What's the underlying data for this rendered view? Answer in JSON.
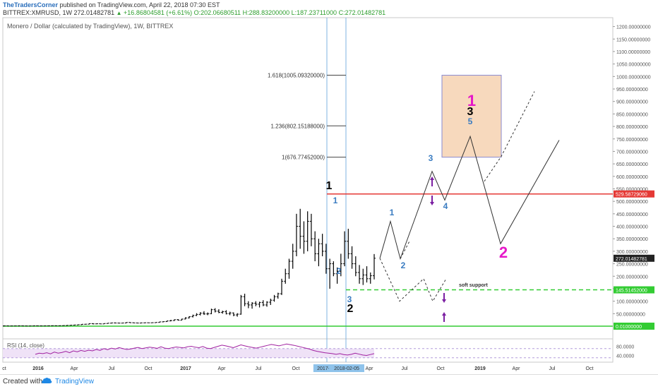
{
  "header": {
    "publisher": "TheTradersCorner",
    "published_text": "published on TradingView.com, April 22, 2018 07:30 EST",
    "symbol": "BITTREX:XMRUSD, 1W",
    "last": "272.01482781",
    "change": "+16.86804581 (+6.61%)",
    "open": "O:202.06680511",
    "high": "H:288.83200000",
    "low": "L:187.23711000",
    "close": "C:272.01482781"
  },
  "footer": {
    "created_with": "Created with",
    "brand": "TradingView"
  },
  "chart_data": {
    "type": "candlestick",
    "title": "Monero / Dollar (calculated by TradingView), 1W, BITTREX",
    "y_axis": {
      "ticks": [
        "1200.00000000",
        "1150.00000000",
        "1100.00000000",
        "1050.00000000",
        "1000.00000000",
        "950.00000000",
        "900.00000000",
        "850.00000000",
        "800.00000000",
        "750.00000000",
        "700.00000000",
        "650.00000000",
        "600.00000000",
        "550.00000000",
        "500.00000000",
        "450.00000000",
        "400.00000000",
        "350.00000000",
        "300.00000000",
        "250.00000000",
        "200.00000000",
        "150.00000000",
        "100.00000000",
        "50.00000000"
      ],
      "ylim": [
        0,
        1230
      ],
      "scale": "linear"
    },
    "x_axis": {
      "tick_labels": [
        "ct",
        "2016",
        "Apr",
        "Jul",
        "Oct",
        "2017",
        "Apr",
        "Jul",
        "Oct",
        "2017-12",
        "2018-02-05",
        "Apr",
        "Jul",
        "Oct",
        "2019",
        "Apr",
        "Jul",
        "Oct"
      ]
    },
    "price_labels": [
      {
        "value": "529.58729060",
        "color": "#e53935"
      },
      {
        "value": "272.01482781",
        "color": "#222222"
      },
      {
        "value": "145.51452000",
        "color": "#33cc33"
      },
      {
        "value": "0.01000000",
        "color": "#33cc33"
      }
    ],
    "fib_levels": [
      {
        "label": "1.618(1005.09320000)",
        "value": 1005.0932
      },
      {
        "label": "1.236(802.15188000)",
        "value": 802.15188
      },
      {
        "label": "1(676.77452000)",
        "value": 676.77452
      }
    ],
    "horizontal_lines": [
      {
        "value": 529.5872906,
        "color": "#e53935",
        "style": "solid"
      },
      {
        "value": 145.51452,
        "color": "#33cc33",
        "style": "dashed"
      },
      {
        "value": 0.01,
        "color": "#33cc33",
        "style": "solid"
      }
    ],
    "annotations": {
      "soft_support": "soft support",
      "waves": [
        {
          "text": "1",
          "color": "#000000",
          "size": "large"
        },
        {
          "text": "1",
          "color": "#3a7cc1",
          "size": "medium"
        },
        {
          "text": "2",
          "color": "#3a7cc1",
          "size": "medium"
        },
        {
          "text": "3",
          "color": "#3a7cc1",
          "size": "medium"
        },
        {
          "text": "2",
          "color": "#000000",
          "size": "large"
        },
        {
          "text": "1",
          "color": "#3a7cc1",
          "size": "medium"
        },
        {
          "text": "2",
          "color": "#3a7cc1",
          "size": "medium"
        },
        {
          "text": "3",
          "color": "#3a7cc1",
          "size": "medium"
        },
        {
          "text": "4",
          "color": "#3a7cc1",
          "size": "medium"
        },
        {
          "text": "1",
          "color": "#e619c8",
          "size": "xlarge"
        },
        {
          "text": "3",
          "color": "#000000",
          "size": "large"
        },
        {
          "text": "5",
          "color": "#3a7cc1",
          "size": "medium"
        },
        {
          "text": "2",
          "color": "#e619c8",
          "size": "xlarge"
        }
      ]
    },
    "weekly_bars": [
      [
        1,
        1,
        1,
        1
      ],
      [
        1,
        1,
        1,
        1
      ],
      [
        1,
        1,
        1,
        1
      ],
      [
        1,
        1,
        1,
        1
      ],
      [
        1,
        1,
        1,
        1
      ],
      [
        1,
        1,
        1,
        1
      ],
      [
        1,
        1,
        1,
        1
      ],
      [
        1,
        1,
        1,
        1
      ],
      [
        1,
        1,
        1,
        1
      ],
      [
        1,
        1,
        1,
        1
      ],
      [
        1,
        1,
        1,
        1
      ],
      [
        1,
        1,
        1,
        1
      ],
      [
        1,
        1,
        1,
        1
      ],
      [
        1,
        1,
        1,
        1
      ],
      [
        1,
        1,
        1,
        1
      ],
      [
        1,
        1,
        1,
        1
      ],
      [
        1,
        1,
        1,
        1
      ],
      [
        1,
        1,
        1,
        1
      ],
      [
        1,
        1,
        1,
        1
      ],
      [
        1,
        1,
        1,
        1
      ],
      [
        1,
        1,
        1,
        1
      ],
      [
        1,
        1,
        1,
        1
      ],
      [
        1,
        1,
        1,
        1
      ],
      [
        1,
        1,
        1,
        1
      ],
      [
        1,
        1,
        1,
        1
      ],
      [
        1,
        1,
        1,
        1
      ],
      [
        1,
        1,
        1,
        1
      ],
      [
        1,
        1,
        1,
        1
      ],
      [
        1,
        1,
        1,
        1
      ],
      [
        1,
        1,
        1,
        1
      ],
      [
        1,
        1,
        1,
        1
      ],
      [
        1,
        1,
        1,
        1
      ],
      [
        1,
        1,
        1,
        1
      ],
      [
        1,
        1,
        1,
        1
      ],
      [
        1,
        1,
        1,
        1
      ],
      [
        1,
        1,
        1,
        1
      ],
      [
        1,
        1,
        1,
        1
      ],
      [
        1,
        1,
        1,
        1
      ],
      [
        1,
        1,
        1,
        1
      ],
      [
        1,
        1,
        1,
        1
      ],
      [
        1,
        1,
        1,
        1
      ],
      [
        1,
        1,
        1,
        1
      ],
      [
        1,
        1,
        1,
        1
      ],
      [
        1,
        1,
        1,
        1
      ],
      [
        1,
        1,
        1,
        1
      ],
      [
        1,
        1,
        1,
        1
      ],
      [
        1,
        1,
        1,
        1
      ],
      [
        1,
        1,
        1,
        1
      ],
      [
        1,
        1,
        1,
        1
      ],
      [
        1,
        1,
        1,
        1
      ],
      [
        1,
        1,
        1,
        1
      ],
      [
        1,
        1,
        1,
        1
      ],
      [
        1,
        1,
        1,
        1
      ],
      [
        1,
        1,
        1,
        1
      ],
      [
        1,
        1,
        1,
        1
      ],
      [
        1,
        1,
        1,
        1
      ],
      [
        1,
        1,
        1,
        1
      ],
      [
        1,
        1,
        1,
        1
      ],
      [
        1,
        1,
        1,
        1
      ],
      [
        1,
        1,
        1,
        1
      ],
      [
        1,
        1,
        1,
        1
      ],
      [
        1,
        1,
        1,
        1
      ],
      [
        1,
        1,
        1,
        1
      ],
      [
        1,
        1,
        1,
        1
      ],
      [
        1,
        1,
        1,
        1
      ],
      [
        1,
        1,
        1,
        1
      ],
      [
        1,
        1,
        1,
        1
      ],
      [
        1,
        1,
        1,
        1
      ],
      [
        1,
        1,
        1,
        1
      ],
      [
        1,
        1,
        1,
        1
      ],
      [
        1,
        1,
        1,
        1
      ],
      [
        1,
        1,
        1,
        1
      ],
      [
        1,
        1,
        1,
        1
      ],
      [
        1,
        1,
        1,
        1
      ],
      [
        1,
        1,
        1,
        1
      ],
      [
        1,
        1,
        1,
        1
      ],
      [
        1,
        1,
        1,
        1
      ],
      [
        1,
        1,
        1,
        1
      ],
      [
        1,
        1,
        1,
        1
      ],
      [
        1,
        1,
        1,
        1
      ]
    ],
    "ohlc": [
      [
        1.0,
        2.2,
        0.5,
        1.2
      ],
      [
        1.2,
        1.5,
        0.7,
        0.9
      ],
      [
        0.9,
        1.3,
        0.6,
        1.0
      ],
      [
        1.0,
        1.4,
        0.7,
        1.1
      ],
      [
        1.1,
        1.6,
        0.8,
        1.3
      ],
      [
        1.3,
        1.8,
        0.9,
        1.0
      ],
      [
        1.0,
        1.3,
        0.7,
        0.8
      ],
      [
        0.8,
        1.2,
        0.5,
        1.0
      ],
      [
        1.0,
        1.5,
        0.8,
        1.4
      ],
      [
        1.4,
        2.0,
        1.0,
        1.2
      ],
      [
        1.2,
        1.6,
        0.9,
        1.1
      ],
      [
        1.1,
        1.5,
        0.8,
        1.3
      ],
      [
        1.3,
        1.9,
        1.0,
        1.6
      ],
      [
        1.6,
        2.4,
        1.3,
        2.0
      ],
      [
        2.0,
        2.6,
        1.6,
        1.8
      ],
      [
        1.8,
        2.3,
        1.4,
        2.1
      ],
      [
        2.1,
        3.0,
        1.9,
        2.6
      ],
      [
        2.6,
        3.8,
        2.3,
        3.2
      ],
      [
        3.2,
        4.5,
        2.9,
        4.0
      ],
      [
        4.0,
        5.6,
        3.5,
        5.0
      ],
      [
        5.0,
        6.5,
        4.3,
        6.0
      ],
      [
        6.0,
        8.5,
        5.2,
        7.6
      ],
      [
        7.6,
        9.0,
        6.8,
        8.0
      ],
      [
        8.0,
        11.0,
        7.4,
        10.3
      ],
      [
        10.3,
        11.5,
        7.5,
        9.2
      ],
      [
        9.2,
        10.5,
        8.3,
        9.5
      ],
      [
        9.5,
        10.2,
        8.4,
        9.0
      ],
      [
        9.0,
        11.0,
        8.6,
        10.7
      ],
      [
        10.7,
        12.5,
        9.8,
        12.0
      ],
      [
        12.0,
        13.8,
        11.0,
        13.0
      ],
      [
        13.0,
        14.5,
        11.8,
        12.6
      ],
      [
        12.6,
        13.5,
        11.0,
        12.2
      ],
      [
        12.2,
        13.2,
        11.5,
        12.8
      ],
      [
        12.8,
        15.5,
        12.2,
        14.8
      ],
      [
        14.8,
        16.0,
        13.2,
        13.8
      ],
      [
        13.8,
        14.5,
        12.3,
        13.0
      ],
      [
        13.0,
        13.8,
        12.0,
        12.5
      ],
      [
        12.5,
        13.5,
        11.6,
        13.3
      ],
      [
        13.3,
        14.0,
        12.4,
        13.7
      ],
      [
        13.7,
        14.2,
        12.9,
        13.5
      ],
      [
        13.5,
        14.5,
        12.8,
        14.0
      ],
      [
        14.0,
        15.5,
        13.5,
        15.0
      ],
      [
        15.0,
        18.0,
        14.5,
        17.2
      ],
      [
        17.2,
        19.0,
        16.0,
        18.2
      ],
      [
        18.2,
        22.0,
        17.5,
        21.0
      ],
      [
        21.0,
        25.0,
        19.5,
        22.5
      ],
      [
        22.5,
        27.0,
        21.0,
        26.0
      ],
      [
        26.0,
        28.0,
        22.5,
        24.0
      ],
      [
        24.0,
        30.0,
        23.5,
        28.5
      ],
      [
        28.5,
        36.0,
        27.0,
        33.0
      ],
      [
        33.0,
        40.0,
        31.0,
        38.0
      ],
      [
        38.0,
        46.0,
        35.0,
        43.0
      ],
      [
        43.0,
        52.0,
        40.5,
        47.0
      ],
      [
        47.0,
        56.0,
        43.0,
        52.0
      ],
      [
        52.0,
        60.0,
        45.0,
        49.0
      ],
      [
        49.0,
        55.0,
        44.0,
        50.0
      ],
      [
        50.0,
        70.0,
        48.0,
        66.0
      ],
      [
        66.0,
        72.0,
        55.0,
        60.0
      ],
      [
        60.0,
        68.0,
        52.0,
        55.0
      ],
      [
        55.0,
        62.0,
        50.0,
        58.0
      ],
      [
        58.0,
        64.0,
        47.0,
        50.0
      ],
      [
        50.0,
        58.0,
        44.0,
        53.0
      ],
      [
        53.0,
        55.0,
        40.0,
        45.0
      ],
      [
        45.0,
        52.0,
        38.0,
        48.0
      ],
      [
        48.0,
        125.0,
        46.0,
        118.0
      ],
      [
        118.0,
        130.0,
        80.0,
        90.0
      ],
      [
        90.0,
        100.0,
        72.0,
        85.0
      ],
      [
        85.0,
        96.0,
        70.0,
        92.0
      ],
      [
        92.0,
        100.0,
        80.0,
        88.0
      ],
      [
        88.0,
        98.0,
        75.0,
        95.0
      ],
      [
        95.0,
        104.0,
        80.0,
        85.0
      ],
      [
        85.0,
        100.0,
        78.0,
        96.0
      ],
      [
        96.0,
        110.0,
        85.0,
        104.0
      ],
      [
        104.0,
        125.0,
        98.0,
        118.0
      ],
      [
        118.0,
        134.0,
        110.0,
        130.0
      ],
      [
        130.0,
        190.0,
        125.0,
        180.0
      ],
      [
        180.0,
        230.0,
        170.0,
        210.0
      ],
      [
        210.0,
        270.0,
        190.0,
        260.0
      ],
      [
        260.0,
        330.0,
        230.0,
        300.0
      ],
      [
        300.0,
        450.0,
        280.0,
        400.0
      ],
      [
        400.0,
        470.0,
        310.0,
        360.0
      ],
      [
        360.0,
        420.0,
        290.0,
        340.0
      ],
      [
        340.0,
        460.0,
        300.0,
        420.0
      ],
      [
        420.0,
        450.0,
        320.0,
        350.0
      ],
      [
        350.0,
        380.0,
        260.0,
        290.0
      ],
      [
        290.0,
        350.0,
        240.0,
        330.0
      ],
      [
        330.0,
        370.0,
        280.0,
        300.0
      ],
      [
        300.0,
        330.0,
        210.0,
        230.0
      ],
      [
        230.0,
        270.0,
        150.0,
        250.0
      ],
      [
        250.0,
        260.0,
        200.0,
        210.0
      ],
      [
        210.0,
        235.0,
        170.0,
        220.0
      ],
      [
        220.0,
        290.0,
        200.0,
        250.0
      ],
      [
        250.0,
        380.0,
        240.0,
        340.0
      ],
      [
        340.0,
        390.0,
        270.0,
        290.0
      ],
      [
        290.0,
        320.0,
        230.0,
        250.0
      ],
      [
        250.0,
        280.0,
        200.0,
        215.0
      ],
      [
        215.0,
        245.0,
        170.0,
        190.0
      ],
      [
        190.0,
        230.0,
        165.0,
        205.0
      ],
      [
        205.0,
        240.0,
        175.0,
        190.0
      ],
      [
        190.0,
        215.0,
        170.0,
        202.0
      ],
      [
        202.0,
        288.83,
        187.24,
        272.01
      ]
    ],
    "projection_solid": [
      [
        0,
        0
      ],
      [
        1,
        0
      ]
    ],
    "rsi": {
      "label": "RSI (14, close)",
      "ticks": [
        "80.0000",
        "40.0000"
      ]
    }
  }
}
